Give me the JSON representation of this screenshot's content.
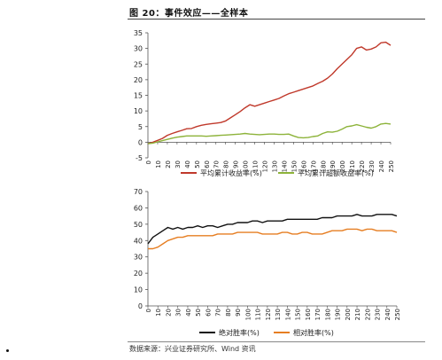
{
  "figure": {
    "title": "图 20：事件效应——全样本",
    "source": "数据来源：兴业证券研究所、Wind 资讯"
  },
  "chart_data": [
    {
      "type": "line",
      "ylim": [
        -5,
        35
      ],
      "yticks": [
        "-5",
        "0",
        "5",
        "10",
        "15",
        "20",
        "25",
        "30",
        "35"
      ],
      "xlim": [
        0,
        250
      ],
      "xticks": [
        "0",
        "10",
        "20",
        "30",
        "40",
        "50",
        "60",
        "70",
        "80",
        "90",
        "100",
        "110",
        "120",
        "130",
        "140",
        "150",
        "160",
        "170",
        "180",
        "190",
        "200",
        "210",
        "220",
        "230",
        "240",
        "250"
      ],
      "grid": false,
      "legend_position": "bottom",
      "series": [
        {
          "name": "平均累计收益率(%)",
          "color": "#c0392b",
          "x": [
            0,
            5,
            10,
            15,
            20,
            25,
            30,
            35,
            40,
            45,
            50,
            55,
            60,
            65,
            70,
            75,
            80,
            85,
            90,
            95,
            100,
            105,
            110,
            115,
            120,
            125,
            130,
            135,
            140,
            145,
            150,
            155,
            160,
            165,
            170,
            175,
            180,
            185,
            190,
            195,
            200,
            205,
            210,
            215,
            220,
            225,
            230,
            235,
            240,
            245,
            250
          ],
          "y": [
            -0.5,
            0,
            0.6,
            1.2,
            2.2,
            2.8,
            3.3,
            3.8,
            4.3,
            4.4,
            5.0,
            5.4,
            5.7,
            5.9,
            6.1,
            6.3,
            6.8,
            7.8,
            8.8,
            9.8,
            11.0,
            12.0,
            11.5,
            12.0,
            12.5,
            13.0,
            13.5,
            14.0,
            14.8,
            15.5,
            16.0,
            16.5,
            17.0,
            17.5,
            18.0,
            18.8,
            19.5,
            20.5,
            21.8,
            23.5,
            25.0,
            26.5,
            28.0,
            30.0,
            30.5,
            29.5,
            29.8,
            30.5,
            31.8,
            32.0,
            31.0
          ]
        },
        {
          "name": "平均累计超额收益率(%)",
          "color": "#8db33a",
          "x": [
            0,
            5,
            10,
            15,
            20,
            25,
            30,
            35,
            40,
            45,
            50,
            55,
            60,
            65,
            70,
            75,
            80,
            85,
            90,
            95,
            100,
            105,
            110,
            115,
            120,
            125,
            130,
            135,
            140,
            145,
            150,
            155,
            160,
            165,
            170,
            175,
            180,
            185,
            190,
            195,
            200,
            205,
            210,
            215,
            220,
            225,
            230,
            235,
            240,
            245,
            250
          ],
          "y": [
            -0.5,
            -0.3,
            0.1,
            0.5,
            0.9,
            1.3,
            1.6,
            1.8,
            2.0,
            2.0,
            2.0,
            2.0,
            1.9,
            2.0,
            2.1,
            2.2,
            2.3,
            2.4,
            2.5,
            2.6,
            2.8,
            2.6,
            2.5,
            2.4,
            2.5,
            2.6,
            2.6,
            2.5,
            2.5,
            2.6,
            2.0,
            1.5,
            1.4,
            1.5,
            1.8,
            2.0,
            2.8,
            3.3,
            3.2,
            3.5,
            4.2,
            5.0,
            5.2,
            5.6,
            5.2,
            4.8,
            4.5,
            5.0,
            5.8,
            6.0,
            5.8
          ]
        }
      ]
    },
    {
      "type": "line",
      "ylim": [
        0,
        70
      ],
      "yticks": [
        "0",
        "10",
        "20",
        "30",
        "40",
        "50",
        "60",
        "70"
      ],
      "xlim": [
        0,
        250
      ],
      "xticks": [
        "0",
        "10",
        "20",
        "30",
        "40",
        "50",
        "60",
        "70",
        "80",
        "90",
        "100",
        "110",
        "120",
        "130",
        "140",
        "150",
        "160",
        "170",
        "180",
        "190",
        "200",
        "210",
        "220",
        "230",
        "240",
        "250"
      ],
      "grid": false,
      "legend_position": "bottom",
      "series": [
        {
          "name": "绝对胜率(%)",
          "color": "#111111",
          "x": [
            0,
            5,
            10,
            15,
            20,
            25,
            30,
            35,
            40,
            45,
            50,
            55,
            60,
            65,
            70,
            75,
            80,
            85,
            90,
            95,
            100,
            105,
            110,
            115,
            120,
            125,
            130,
            135,
            140,
            145,
            150,
            155,
            160,
            165,
            170,
            175,
            180,
            185,
            190,
            195,
            200,
            205,
            210,
            215,
            220,
            225,
            230,
            235,
            240,
            245,
            250
          ],
          "y": [
            38,
            42,
            44,
            46,
            48,
            47,
            48,
            47,
            48,
            48,
            49,
            48,
            49,
            49,
            48,
            49,
            50,
            50,
            51,
            51,
            51,
            52,
            52,
            51,
            52,
            52,
            52,
            52,
            53,
            53,
            53,
            53,
            53,
            53,
            53,
            54,
            54,
            54,
            55,
            55,
            55,
            55,
            56,
            55,
            55,
            55,
            56,
            56,
            56,
            56,
            55
          ]
        },
        {
          "name": "相对胜率(%)",
          "color": "#e67e22",
          "x": [
            0,
            5,
            10,
            15,
            20,
            25,
            30,
            35,
            40,
            45,
            50,
            55,
            60,
            65,
            70,
            75,
            80,
            85,
            90,
            95,
            100,
            105,
            110,
            115,
            120,
            125,
            130,
            135,
            140,
            145,
            150,
            155,
            160,
            165,
            170,
            175,
            180,
            185,
            190,
            195,
            200,
            205,
            210,
            215,
            220,
            225,
            230,
            235,
            240,
            245,
            250
          ],
          "y": [
            35,
            35,
            36,
            38,
            40,
            41,
            42,
            42,
            43,
            43,
            43,
            43,
            43,
            43,
            44,
            44,
            44,
            44,
            45,
            45,
            45,
            45,
            45,
            44,
            44,
            44,
            44,
            45,
            45,
            44,
            44,
            45,
            45,
            44,
            44,
            44,
            45,
            46,
            46,
            46,
            47,
            47,
            47,
            46,
            47,
            47,
            46,
            46,
            46,
            46,
            45
          ]
        }
      ]
    }
  ]
}
